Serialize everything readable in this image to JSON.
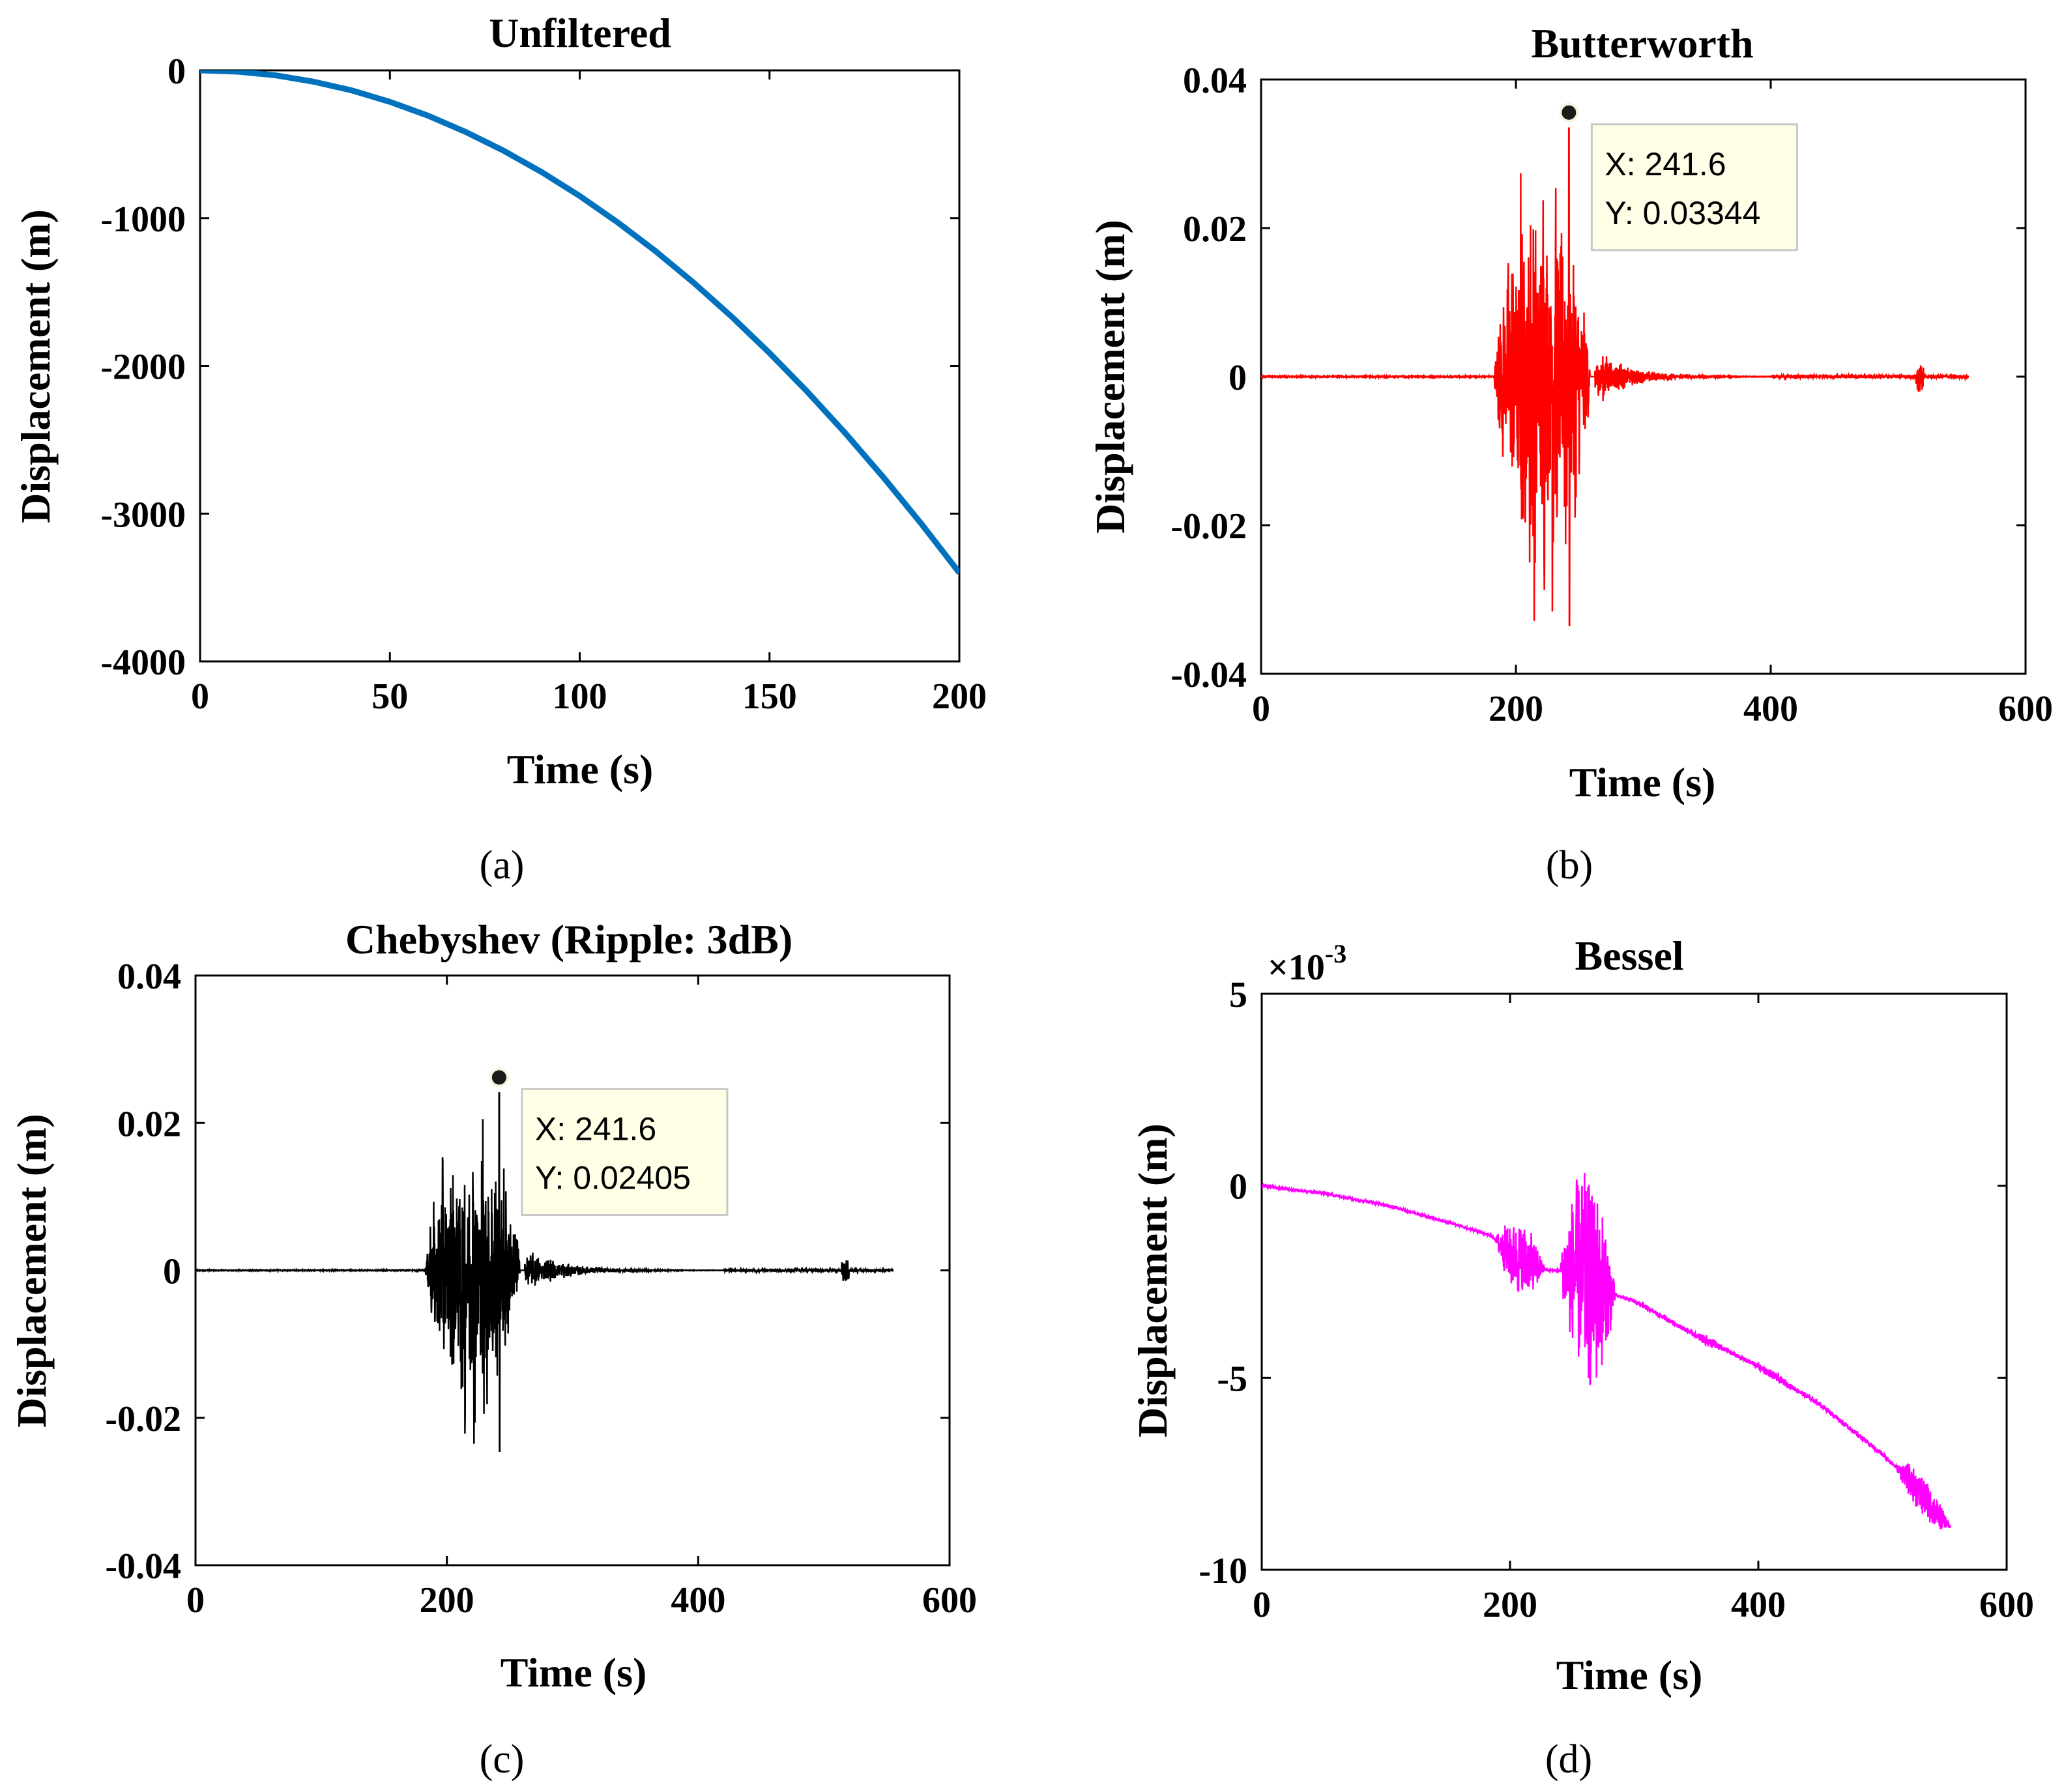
{
  "chart_data": [
    {
      "id": "a",
      "type": "line",
      "title": "Unfiltered",
      "xlabel": "Time (s)",
      "ylabel": "Displacement (m)",
      "panel_label": "(a)",
      "xlim": [
        0,
        200
      ],
      "ylim": [
        -4000,
        0
      ],
      "xticks": [
        0,
        50,
        100,
        150,
        200
      ],
      "xtick_labels": [
        "0",
        "50",
        "100",
        "150",
        "200"
      ],
      "yticks": [
        0,
        -1000,
        -2000,
        -3000,
        -4000
      ],
      "ytick_labels": [
        "0",
        "-1000",
        "-2000",
        "-3000",
        "-4000"
      ],
      "color": "#0072BD",
      "series": [
        {
          "name": "Unfiltered",
          "x": [
            0,
            10,
            20,
            30,
            40,
            50,
            60,
            70,
            80,
            90,
            100,
            110,
            120,
            130,
            140,
            150,
            160,
            170,
            180,
            190,
            200
          ],
          "y": [
            0,
            -9,
            -34,
            -77,
            -136,
            -213,
            -306,
            -417,
            -544,
            -689,
            -850,
            -1029,
            -1224,
            -1437,
            -1666,
            -1913,
            -2176,
            -2457,
            -2754,
            -3069,
            -3400
          ]
        }
      ]
    },
    {
      "id": "b",
      "type": "line",
      "title": "Butterworth",
      "xlabel": "Time (s)",
      "ylabel": "Displacement (m)",
      "panel_label": "(b)",
      "xlim": [
        0,
        600
      ],
      "ylim": [
        -0.04,
        0.04
      ],
      "xticks": [
        0,
        200,
        400,
        600
      ],
      "xtick_labels": [
        "0",
        "200",
        "400",
        "600"
      ],
      "yticks": [
        0.04,
        0.02,
        0,
        -0.02,
        -0.04
      ],
      "ytick_labels": [
        "0.04",
        "0.02",
        "0",
        "-0.02",
        "-0.04"
      ],
      "color": "#FF0000",
      "signal": {
        "start": 0,
        "end": 555,
        "burst_start": 183,
        "burst_end": 262,
        "peak_x": 241.6,
        "peak_y": 0.03344,
        "trough_y": -0.0335,
        "decay_end": 400,
        "small_bump_x": 517
      },
      "datatip": {
        "x": 241.6,
        "y": 0.03344,
        "x_text": "X: 241.6",
        "y_text": "Y: 0.03344"
      }
    },
    {
      "id": "c",
      "type": "line",
      "title": "Chebyshev (Ripple: 3dB)",
      "xlabel": "Time (s)",
      "ylabel": "Displacement (m)",
      "panel_label": "(c)",
      "xlim": [
        0,
        600
      ],
      "ylim": [
        -0.04,
        0.04
      ],
      "xticks": [
        0,
        200,
        400,
        600
      ],
      "xtick_labels": [
        "0",
        "200",
        "400",
        "600"
      ],
      "yticks": [
        0.04,
        0.02,
        0,
        -0.02,
        -0.04
      ],
      "ytick_labels": [
        "0.04",
        "0.02",
        "0",
        "-0.02",
        "-0.04"
      ],
      "color": "#000000",
      "signal": {
        "start": 0,
        "end": 555,
        "burst_start": 183,
        "burst_end": 262,
        "peak_x": 241.6,
        "peak_y": 0.02405,
        "trough_y": -0.0245,
        "decay_end": 420,
        "small_bump_x": 517
      },
      "datatip": {
        "x": 241.6,
        "y": 0.02405,
        "x_text": "X: 241.6",
        "y_text": "Y: 0.02405"
      }
    },
    {
      "id": "d",
      "type": "line",
      "title": "Bessel",
      "xlabel": "Time (s)",
      "ylabel": "Displacement (m)",
      "panel_label": "(d)",
      "exponent_label": "×10",
      "exponent_power": "-3",
      "xlim": [
        0,
        600
      ],
      "ylim": [
        -10,
        5
      ],
      "xticks": [
        0,
        200,
        400,
        600
      ],
      "xtick_labels": [
        "0",
        "200",
        "400",
        "600"
      ],
      "yticks": [
        5,
        0,
        -5,
        -10
      ],
      "ytick_labels": [
        "5",
        "0",
        "-5",
        "-10"
      ],
      "color": "#FF00FF",
      "trend": {
        "x": [
          0,
          50,
          100,
          150,
          185,
          200,
          230,
          250,
          280,
          300,
          350,
          400,
          450,
          500,
          520,
          540,
          555
        ],
        "y": [
          0,
          -0.2,
          -0.5,
          -0.95,
          -1.3,
          -1.8,
          -2.2,
          -2.2,
          -2.8,
          -3.0,
          -3.9,
          -4.7,
          -5.7,
          -7.0,
          -7.6,
          -8.4,
          -8.9
        ]
      },
      "bursts": [
        {
          "start": 188,
          "end": 228,
          "amp": 1.0
        },
        {
          "start": 240,
          "end": 285,
          "amp": 2.9
        },
        {
          "start": 345,
          "end": 375,
          "amp": 0.15
        },
        {
          "start": 395,
          "end": 430,
          "amp": 0.12
        },
        {
          "start": 510,
          "end": 555,
          "amp": 0.55
        }
      ]
    }
  ]
}
